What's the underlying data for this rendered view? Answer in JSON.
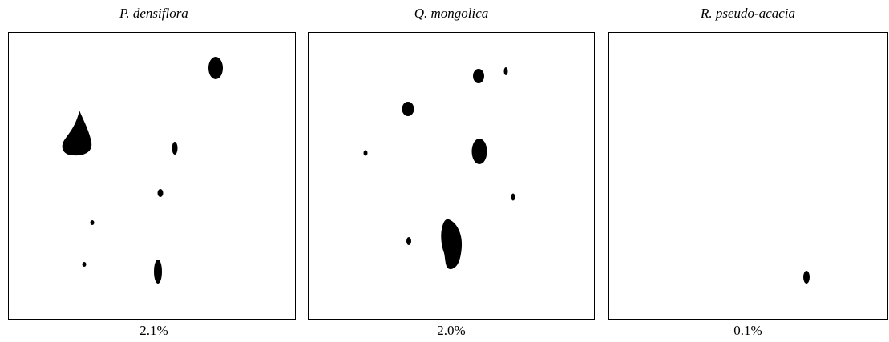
{
  "panels": [
    {
      "title": "P. densiflora",
      "caption": "2.1%"
    },
    {
      "title": "Q. mongolica",
      "caption": "2.0%"
    },
    {
      "title": "R. pseudo-acacia",
      "caption": "0.1%"
    }
  ]
}
